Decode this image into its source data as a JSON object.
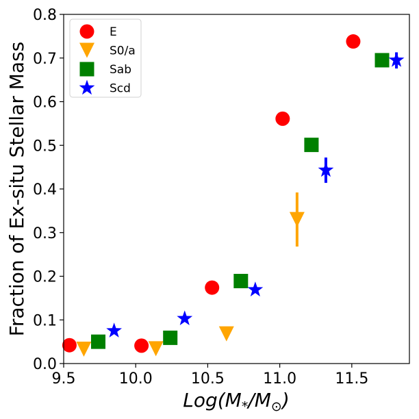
{
  "chart_data": {
    "type": "scatter",
    "title": "",
    "xlabel_parts": {
      "prefix": "Log(M",
      "sub1": "*",
      "mid": "/M",
      "sub2": "⊙",
      "suffix": ")"
    },
    "ylabel": "Fraction of Ex-situ Stellar Mass",
    "xlim": [
      9.5,
      11.9
    ],
    "ylim": [
      0.0,
      0.8
    ],
    "xticks": [
      9.5,
      10.0,
      10.5,
      11.0,
      11.5
    ],
    "xtick_labels": [
      "9.5",
      "10.0",
      "10.5",
      "11.0",
      "11.5"
    ],
    "yticks": [
      0.0,
      0.1,
      0.2,
      0.3,
      0.4,
      0.5,
      0.6,
      0.7,
      0.8
    ],
    "ytick_labels": [
      "0.0",
      "0.1",
      "0.2",
      "0.3",
      "0.4",
      "0.5",
      "0.6",
      "0.7",
      "0.8"
    ],
    "legend_position": "top-left",
    "series": [
      {
        "name": "E",
        "marker": "circle",
        "color": "#ff0000",
        "points": [
          {
            "x": 9.54,
            "y": 0.042
          },
          {
            "x": 10.04,
            "y": 0.041
          },
          {
            "x": 10.53,
            "y": 0.174
          },
          {
            "x": 11.02,
            "y": 0.561
          },
          {
            "x": 11.51,
            "y": 0.738
          }
        ]
      },
      {
        "name": "S0/a",
        "marker": "triangle-down",
        "color": "#ffa500",
        "points": [
          {
            "x": 9.64,
            "y": 0.033
          },
          {
            "x": 10.14,
            "y": 0.034
          },
          {
            "x": 10.63,
            "y": 0.068
          },
          {
            "x": 11.12,
            "y": 0.33,
            "yerr_low": 0.268,
            "yerr_high": 0.392
          }
        ]
      },
      {
        "name": "Sab",
        "marker": "square",
        "color": "#008000",
        "points": [
          {
            "x": 9.74,
            "y": 0.05
          },
          {
            "x": 10.24,
            "y": 0.059
          },
          {
            "x": 10.73,
            "y": 0.189
          },
          {
            "x": 11.22,
            "y": 0.501
          },
          {
            "x": 11.71,
            "y": 0.695
          }
        ]
      },
      {
        "name": "Scd",
        "marker": "star",
        "color": "#0000ff",
        "points": [
          {
            "x": 9.85,
            "y": 0.075
          },
          {
            "x": 10.34,
            "y": 0.103
          },
          {
            "x": 10.83,
            "y": 0.169
          },
          {
            "x": 11.32,
            "y": 0.443,
            "yerr_low": 0.414,
            "yerr_high": 0.472
          },
          {
            "x": 11.81,
            "y": 0.695,
            "yerr_low": 0.676,
            "yerr_high": 0.713
          }
        ]
      }
    ]
  }
}
